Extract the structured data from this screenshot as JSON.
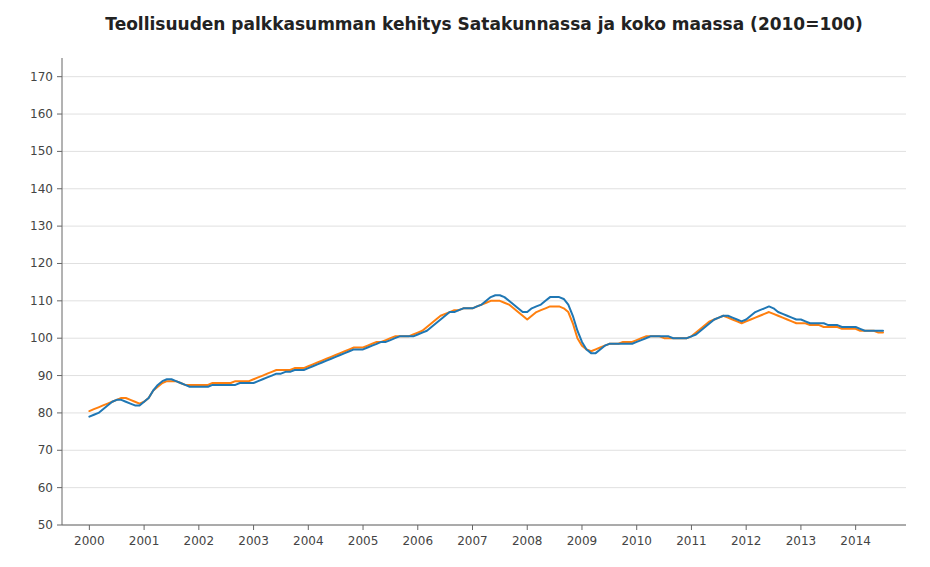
{
  "chart_data": {
    "type": "line",
    "title": "Teollisuuden palkkasumman kehitys Satakunnassa ja koko maassa (2010=100)",
    "x": [
      2000.0,
      2000.083,
      2000.167,
      2000.25,
      2000.333,
      2000.417,
      2000.5,
      2000.583,
      2000.667,
      2000.75,
      2000.833,
      2000.917,
      2001.0,
      2001.083,
      2001.167,
      2001.25,
      2001.333,
      2001.417,
      2001.5,
      2001.583,
      2001.667,
      2001.75,
      2001.833,
      2001.917,
      2002.0,
      2002.083,
      2002.167,
      2002.25,
      2002.333,
      2002.417,
      2002.5,
      2002.583,
      2002.667,
      2002.75,
      2002.833,
      2002.917,
      2003.0,
      2003.083,
      2003.167,
      2003.25,
      2003.333,
      2003.417,
      2003.5,
      2003.583,
      2003.667,
      2003.75,
      2003.833,
      2003.917,
      2004.0,
      2004.083,
      2004.167,
      2004.25,
      2004.333,
      2004.417,
      2004.5,
      2004.583,
      2004.667,
      2004.75,
      2004.833,
      2004.917,
      2005.0,
      2005.083,
      2005.167,
      2005.25,
      2005.333,
      2005.417,
      2005.5,
      2005.583,
      2005.667,
      2005.75,
      2005.833,
      2005.917,
      2006.0,
      2006.083,
      2006.167,
      2006.25,
      2006.333,
      2006.417,
      2006.5,
      2006.583,
      2006.667,
      2006.75,
      2006.833,
      2006.917,
      2007.0,
      2007.083,
      2007.167,
      2007.25,
      2007.333,
      2007.417,
      2007.5,
      2007.583,
      2007.667,
      2007.75,
      2007.833,
      2007.917,
      2008.0,
      2008.083,
      2008.167,
      2008.25,
      2008.333,
      2008.417,
      2008.5,
      2008.583,
      2008.667,
      2008.75,
      2008.833,
      2008.917,
      2009.0,
      2009.083,
      2009.167,
      2009.25,
      2009.333,
      2009.417,
      2009.5,
      2009.583,
      2009.667,
      2009.75,
      2009.833,
      2009.917,
      2010.0,
      2010.083,
      2010.167,
      2010.25,
      2010.333,
      2010.417,
      2010.5,
      2010.583,
      2010.667,
      2010.75,
      2010.833,
      2010.917,
      2011.0,
      2011.083,
      2011.167,
      2011.25,
      2011.333,
      2011.417,
      2011.5,
      2011.583,
      2011.667,
      2011.75,
      2011.833,
      2011.917,
      2012.0,
      2012.083,
      2012.167,
      2012.25,
      2012.333,
      2012.417,
      2012.5,
      2012.583,
      2012.667,
      2012.75,
      2012.833,
      2012.917,
      2013.0,
      2013.083,
      2013.167,
      2013.25,
      2013.333,
      2013.417,
      2013.5,
      2013.583,
      2013.667,
      2013.75,
      2013.833,
      2013.917,
      2014.0,
      2014.083,
      2014.167,
      2014.25,
      2014.333,
      2014.417,
      2014.5
    ],
    "series": [
      {
        "values": [
          80.5,
          81,
          81.5,
          82,
          82.5,
          83,
          83.5,
          84,
          84,
          83.5,
          83,
          82.5,
          83,
          84,
          86,
          87,
          88,
          88.5,
          88.5,
          88.5,
          88,
          87.5,
          87.5,
          87.5,
          87.5,
          87.5,
          87.5,
          88,
          88,
          88,
          88,
          88,
          88.5,
          88.5,
          88.5,
          88.5,
          89,
          89.5,
          90,
          90.5,
          91,
          91.5,
          91.5,
          91.5,
          91.5,
          92,
          92,
          92,
          92.5,
          93,
          93.5,
          94,
          94.5,
          95,
          95.5,
          96,
          96.5,
          97,
          97.5,
          97.5,
          97.5,
          98,
          98.5,
          99,
          99,
          99.5,
          100,
          100.5,
          100.5,
          100.5,
          100.5,
          101,
          101.5,
          102,
          103,
          104,
          105,
          106,
          106.5,
          107,
          107.5,
          107.5,
          108,
          108,
          108,
          108.5,
          109,
          109.5,
          110,
          110,
          110,
          109.5,
          109,
          108,
          107,
          106,
          105,
          106,
          107,
          107.5,
          108,
          108.5,
          108.5,
          108.5,
          108,
          107,
          104,
          100,
          98,
          97,
          96.5,
          97,
          97.5,
          98,
          98.5,
          98.5,
          98.5,
          99,
          99,
          99,
          99.5,
          100,
          100.5,
          100.5,
          100.5,
          100.5,
          100,
          100,
          100,
          100,
          100,
          100,
          100.5,
          101.5,
          102.5,
          103.5,
          104.5,
          105,
          105.5,
          106,
          105.5,
          105,
          104.5,
          104,
          104.5,
          105,
          105.5,
          106,
          106.5,
          107,
          106.5,
          106,
          105.5,
          105,
          104.5,
          104,
          104,
          104,
          103.5,
          103.5,
          103.5,
          103,
          103,
          103,
          103,
          102.5,
          102.5,
          102.5,
          102.5,
          102,
          102,
          102,
          102,
          101.5,
          101.5
        ]
      },
      {
        "values": [
          79,
          79.5,
          80,
          81,
          82,
          83,
          83.5,
          83.5,
          83,
          82.5,
          82,
          82,
          83,
          84,
          86,
          87.5,
          88.5,
          89,
          89,
          88.5,
          88,
          87.5,
          87,
          87,
          87,
          87,
          87,
          87.5,
          87.5,
          87.5,
          87.5,
          87.5,
          87.5,
          88,
          88,
          88,
          88,
          88.5,
          89,
          89.5,
          90,
          90.5,
          90.5,
          91,
          91,
          91.5,
          91.5,
          91.5,
          92,
          92.5,
          93,
          93.5,
          94,
          94.5,
          95,
          95.5,
          96,
          96.5,
          97,
          97,
          97,
          97.5,
          98,
          98.5,
          99,
          99,
          99.5,
          100,
          100.5,
          100.5,
          100.5,
          100.5,
          101,
          101.5,
          102,
          103,
          104,
          105,
          106,
          107,
          107,
          107.5,
          108,
          108,
          108,
          108.5,
          109,
          110,
          111,
          111.5,
          111.5,
          111,
          110,
          109,
          108,
          107,
          107,
          108,
          108.5,
          109,
          110,
          111,
          111,
          111,
          110.5,
          109,
          106,
          102,
          99,
          97,
          96,
          96,
          97,
          98,
          98.5,
          98.5,
          98.5,
          98.5,
          98.5,
          98.5,
          99,
          99.5,
          100,
          100.5,
          100.5,
          100.5,
          100.5,
          100.5,
          100,
          100,
          100,
          100,
          100.5,
          101,
          102,
          103,
          104,
          105,
          105.5,
          106,
          106,
          105.5,
          105,
          104.5,
          105,
          106,
          107,
          107.5,
          108,
          108.5,
          108,
          107,
          106.5,
          106,
          105.5,
          105,
          105,
          104.5,
          104,
          104,
          104,
          104,
          103.5,
          103.5,
          103.5,
          103,
          103,
          103,
          103,
          102.5,
          102,
          102,
          102,
          102,
          102
        ]
      }
    ],
    "xlim": [
      1999.5,
      2014.92
    ],
    "xticks": [
      2000,
      2001,
      2002,
      2003,
      2004,
      2005,
      2006,
      2007,
      2008,
      2009,
      2010,
      2011,
      2012,
      2013,
      2014
    ],
    "ylim": [
      50,
      175
    ],
    "yticks": [
      50,
      60,
      70,
      80,
      90,
      100,
      110,
      120,
      130,
      140,
      150,
      160,
      170
    ],
    "grid": true
  }
}
